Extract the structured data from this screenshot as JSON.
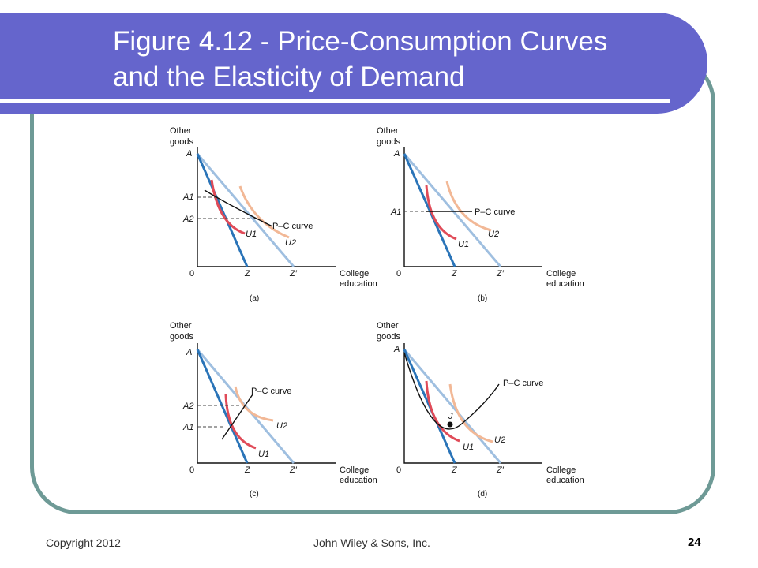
{
  "slide": {
    "title_line1": "Figure 4.12 - Price-Consumption Curves",
    "title_line2": "and the Elasticity of Demand"
  },
  "footer": {
    "copyright": "Copyright 2012",
    "publisher": "John Wiley & Sons, Inc.",
    "page_number": "24"
  },
  "colors": {
    "banner": "#6565cc",
    "frame": "#6e9a96",
    "budget_z": "#2a74b8",
    "budget_zprime": "#9fbfe0",
    "u1": "#e04b58",
    "u2": "#f2b896",
    "pc_curve": "#111111"
  },
  "panels": [
    {
      "caption": "(a)",
      "y_axis": [
        "Other",
        "goods"
      ],
      "x_axis": [
        "College",
        "education"
      ],
      "origin": "0",
      "a_label": "A",
      "z_label": "Z",
      "zprime_label": "Z′",
      "a1_label": "A1",
      "a2_label": "A2",
      "pc_label": "P–C curve",
      "u1_label": "U1",
      "u2_label": "U2"
    },
    {
      "caption": "(b)",
      "y_axis": [
        "Other",
        "goods"
      ],
      "x_axis": [
        "College",
        "education"
      ],
      "origin": "0",
      "a_label": "A",
      "z_label": "Z",
      "zprime_label": "Z′",
      "a1_label": "A1",
      "pc_label": "P–C curve",
      "u1_label": "U1",
      "u2_label": "U2"
    },
    {
      "caption": "(c)",
      "y_axis": [
        "Other",
        "goods"
      ],
      "x_axis": [
        "College",
        "education"
      ],
      "origin": "0",
      "a_label": "A",
      "z_label": "Z",
      "zprime_label": "Z′",
      "a2_label": "A2",
      "a1_label": "A1",
      "pc_label": "P–C curve",
      "u1_label": "U1",
      "u2_label": "U2"
    },
    {
      "caption": "(d)",
      "y_axis": [
        "Other",
        "goods"
      ],
      "x_axis": [
        "College",
        "education"
      ],
      "origin": "0",
      "a_label": "A",
      "z_label": "Z",
      "zprime_label": "Z′",
      "j_label": "J",
      "pc_label": "P–C curve",
      "u1_label": "U1",
      "u2_label": "U2"
    }
  ]
}
